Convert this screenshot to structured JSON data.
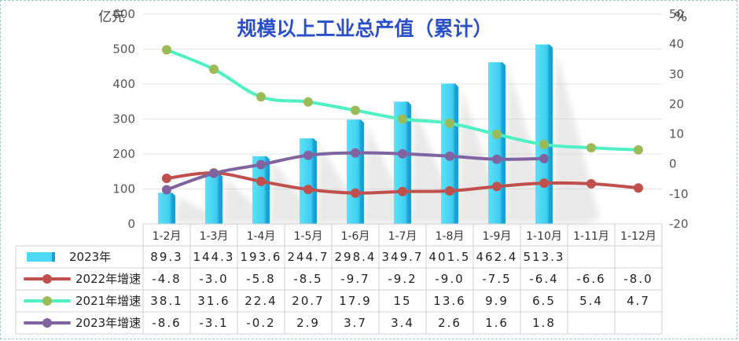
{
  "chart_data": {
    "type": "bar",
    "title": "规模以上工业总产值（累计）",
    "left_axis_unit": "亿元",
    "right_axis_unit": "%",
    "categories": [
      "1-2月",
      "1-3月",
      "1-4月",
      "1-5月",
      "1-6月",
      "1-7月",
      "1-8月",
      "1-9月",
      "1-10月",
      "1-11月",
      "1-12月"
    ],
    "left_ylim": [
      0,
      600
    ],
    "left_yticks": [
      "0",
      "100",
      "200",
      "300",
      "400",
      "500",
      "600"
    ],
    "right_ylim": [
      -20,
      50
    ],
    "right_yticks": [
      "-20",
      "-10",
      "0",
      "10",
      "20",
      "30",
      "40",
      "50"
    ],
    "grid": true,
    "legend": "data-table-below",
    "series": [
      {
        "name": "2023年",
        "type": "bar",
        "axis": "left",
        "color": "#4fd8f5",
        "values": [
          89.3,
          144.3,
          193.6,
          244.7,
          298.4,
          349.7,
          401.5,
          462.4,
          513.3,
          null,
          null
        ],
        "labels": [
          "89.3",
          "144.3",
          "193.6",
          "244.7",
          "298.4",
          "349.7",
          "401.5",
          "462.4",
          "513.3",
          "",
          ""
        ]
      },
      {
        "name": "2022年增速",
        "type": "line",
        "axis": "right",
        "color": "#c0504d",
        "marker_color": "#c0504d",
        "values": [
          -4.8,
          -3.0,
          -5.8,
          -8.5,
          -9.7,
          -9.2,
          -9.0,
          -7.5,
          -6.4,
          -6.6,
          -8.0
        ],
        "labels": [
          "-4.8",
          "-3.0",
          "-5.8",
          "-8.5",
          "-9.7",
          "-9.2",
          "-9.0",
          "-7.5",
          "-6.4",
          "-6.6",
          "-8.0"
        ]
      },
      {
        "name": "2021年增速",
        "type": "line",
        "axis": "right",
        "color": "#4ff0c4",
        "marker_color": "#9bbb59",
        "values": [
          38.1,
          31.6,
          22.4,
          20.7,
          17.9,
          15,
          13.6,
          9.9,
          6.5,
          5.4,
          4.7
        ],
        "labels": [
          "38.1",
          "31.6",
          "22.4",
          "20.7",
          "17.9",
          "15",
          "13.6",
          "9.9",
          "6.5",
          "5.4",
          "4.7"
        ]
      },
      {
        "name": "2023年增速",
        "type": "line",
        "axis": "right",
        "color": "#8064a2",
        "marker_color": "#8064a2",
        "values": [
          -8.6,
          -3.1,
          -0.2,
          2.9,
          3.7,
          3.4,
          2.6,
          1.6,
          1.8,
          null,
          null
        ],
        "labels": [
          "-8.6",
          "-3.1",
          "-0.2",
          "2.9",
          "3.7",
          "3.4",
          "2.6",
          "1.6",
          "1.8",
          "",
          ""
        ]
      }
    ]
  }
}
